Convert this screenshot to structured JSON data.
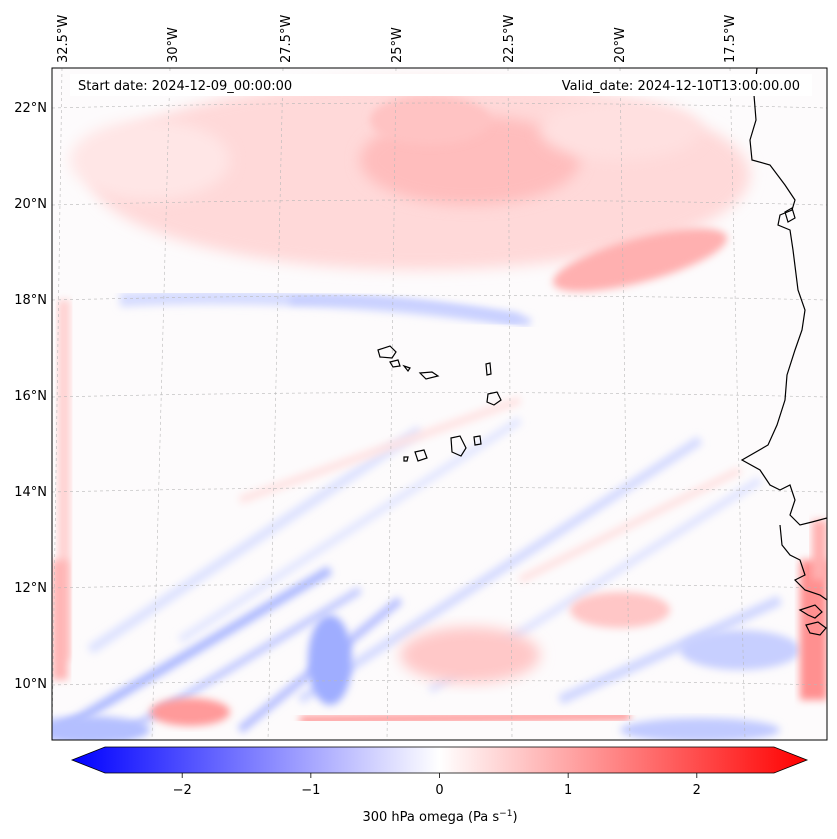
{
  "map": {
    "start_date_text": "Start date: 2024-12-09_00:00:00",
    "valid_date_text": "Valid_date: 2024-12-10T13:00:00.00",
    "lon_labels": [
      "32.5°W",
      "30°W",
      "27.5°W",
      "25°W",
      "22.5°W",
      "20°W",
      "17.5°W"
    ],
    "lat_labels": [
      "22°N",
      "20°N",
      "18°N",
      "16°N",
      "14°N",
      "12°N",
      "10°N"
    ],
    "field": "300 hPa omega",
    "colors": {
      "negative": "#0000ff",
      "neutral": "#ffffff",
      "positive": "#ff0000",
      "coast": "#000000",
      "grid": "#b0b0b0"
    }
  },
  "colorbar": {
    "label": "300 hPa omega (Pa s",
    "label_sup": "−1",
    "label_close": ")",
    "ticks": [
      "−2",
      "−1",
      "0",
      "1",
      "2"
    ],
    "tick_values": [
      -2,
      -1,
      0,
      1,
      2
    ],
    "vmin": -2.6,
    "vmax": 2.6
  }
}
